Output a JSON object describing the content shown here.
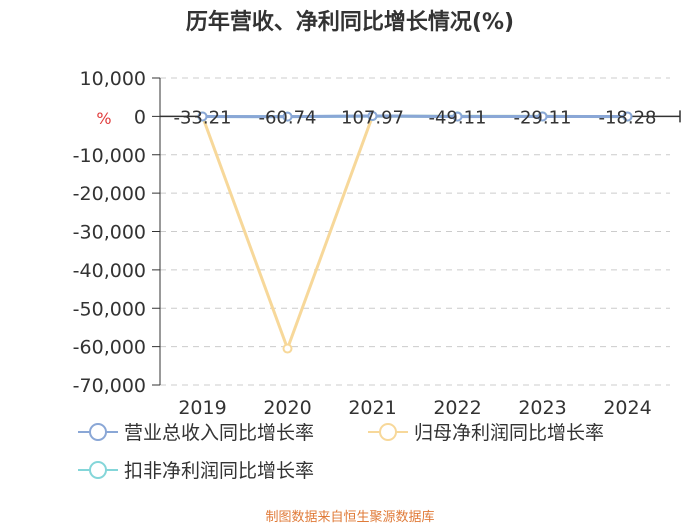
{
  "chart_data": {
    "type": "line",
    "title": "历年营收、净利同比增长情况(%)",
    "ylabel": "%",
    "categories": [
      "2019",
      "2020",
      "2021",
      "2022",
      "2023",
      "2024"
    ],
    "ylim": [
      -70000,
      10000
    ],
    "yticks": [
      10000,
      0,
      -10000,
      -20000,
      -30000,
      -40000,
      -50000,
      -60000,
      -70000
    ],
    "ytick_labels": [
      "10,000",
      "0",
      "-10,000",
      "-20,000",
      "-30,000",
      "-40,000",
      "-50,000",
      "-60,000",
      "-70,000"
    ],
    "grid": true,
    "legend_position": "bottom",
    "series": [
      {
        "name": "营业总收入同比增长率",
        "color": "#8aa7d6",
        "values": [
          -33.21,
          -60.74,
          107.97,
          -49.11,
          -29.11,
          -18.28
        ],
        "labels": [
          "-33.21",
          "-60.74",
          "107.97",
          "-49.11",
          "-29.11",
          "-18.28"
        ]
      },
      {
        "name": "归母净利润同比增长率",
        "color": "#f7d89a",
        "values": [
          -27.0,
          -60500.0,
          64.0,
          0.0,
          10.0,
          -60.0
        ]
      },
      {
        "name": "扣非净利润同比增长率",
        "color": "#84d6d9",
        "values": [
          -40.0,
          -70.0,
          60.0,
          -10.0,
          -9.0,
          -50.0
        ]
      }
    ]
  },
  "source": "制图数据来自恒生聚源数据库"
}
